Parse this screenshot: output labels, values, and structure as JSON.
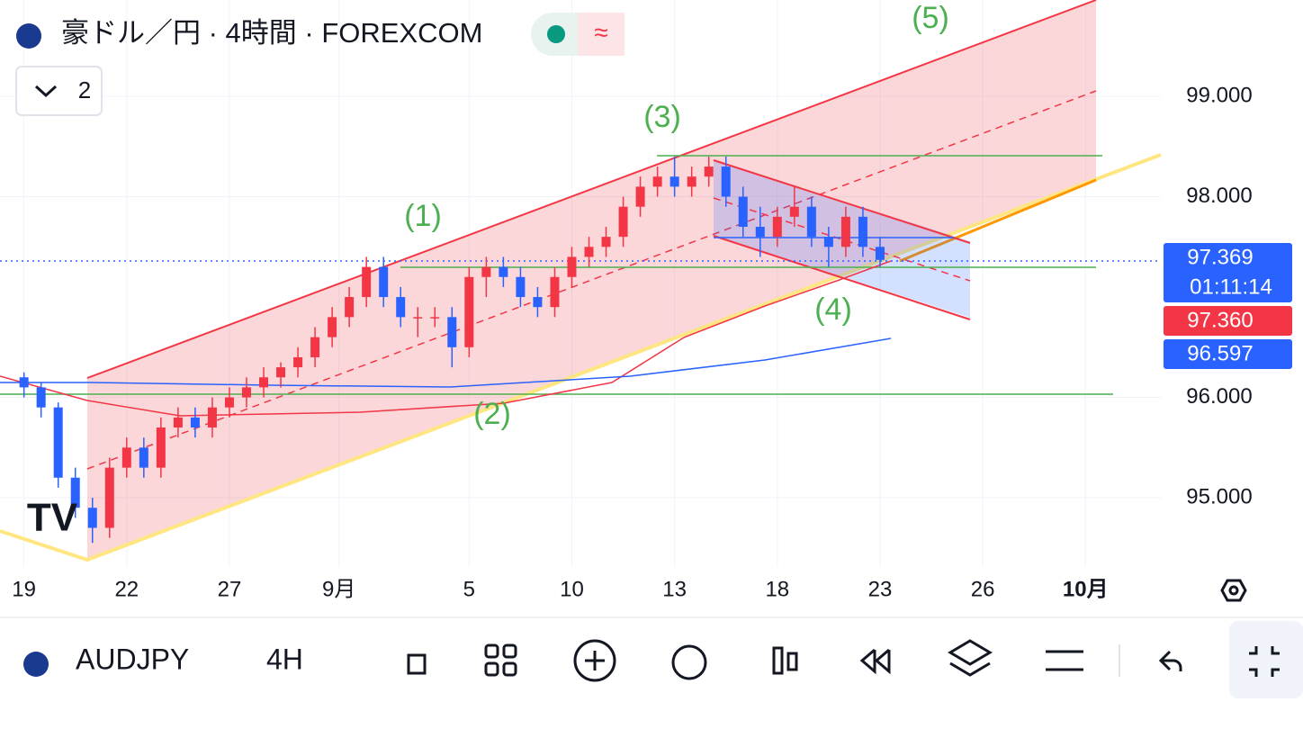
{
  "header": {
    "title": "豪ドル／円 · 4時間 · FOREXCOM",
    "indicator_count": 2
  },
  "chart_data": {
    "type": "candlestick",
    "xlim": [
      -0.7,
      33.2
    ],
    "xticks": [
      {
        "value": 0,
        "label": "19"
      },
      {
        "value": 3,
        "label": "22"
      },
      {
        "value": 6,
        "label": "27"
      },
      {
        "value": 9.2,
        "label": "9月"
      },
      {
        "value": 13,
        "label": "5"
      },
      {
        "value": 16,
        "label": "10"
      },
      {
        "value": 19,
        "label": "13"
      },
      {
        "value": 22,
        "label": "18"
      },
      {
        "value": 25,
        "label": "23"
      },
      {
        "value": 28,
        "label": "26"
      },
      {
        "value": 31,
        "label": "10月"
      }
    ],
    "ylim": [
      94.31,
      99.96
    ],
    "yticks": [
      {
        "value": 95,
        "label": "95.000"
      },
      {
        "value": 96,
        "label": "96.000"
      },
      {
        "value": 98,
        "label": "98.000"
      },
      {
        "value": 99,
        "label": "99.000"
      }
    ],
    "up_color": "#f23645",
    "down_color": "#2962ff",
    "x": [
      0,
      0.5,
      1,
      1.5,
      2,
      2.5,
      3,
      3.5,
      4,
      4.5,
      5,
      5.5,
      6,
      6.5,
      7,
      7.5,
      8,
      8.5,
      9,
      9.5,
      10,
      10.5,
      11,
      11.5,
      12,
      12.5,
      13,
      13.5,
      14,
      14.5,
      15,
      15.5,
      16,
      16.5,
      17,
      17.5,
      18,
      18.5,
      19,
      19.5,
      20,
      20.5,
      21,
      21.5,
      22,
      22.5,
      23,
      23.5,
      24,
      24.5,
      25
    ],
    "open": [
      96.2,
      96.1,
      95.9,
      95.2,
      94.9,
      94.7,
      95.3,
      95.5,
      95.3,
      95.7,
      95.8,
      95.7,
      95.9,
      96.0,
      96.1,
      96.2,
      96.3,
      96.4,
      96.6,
      96.8,
      97.0,
      97.3,
      97.0,
      96.8,
      96.8,
      96.8,
      96.5,
      97.2,
      97.3,
      97.2,
      97.0,
      96.9,
      97.2,
      97.4,
      97.5,
      97.6,
      97.9,
      98.1,
      98.2,
      98.1,
      98.2,
      98.3,
      98.0,
      97.7,
      97.6,
      97.8,
      97.9,
      97.6,
      97.5,
      97.8,
      97.5
    ],
    "high": [
      96.25,
      96.15,
      95.95,
      95.3,
      95.0,
      95.4,
      95.6,
      95.6,
      95.8,
      95.9,
      95.9,
      96.0,
      96.1,
      96.2,
      96.3,
      96.35,
      96.5,
      96.7,
      96.9,
      97.1,
      97.4,
      97.4,
      97.1,
      96.9,
      96.9,
      96.9,
      97.3,
      97.4,
      97.4,
      97.3,
      97.1,
      97.3,
      97.5,
      97.6,
      97.7,
      98.0,
      98.2,
      98.3,
      98.4,
      98.3,
      98.4,
      98.4,
      98.1,
      97.9,
      97.9,
      98.1,
      98.0,
      97.7,
      97.9,
      97.9,
      97.6
    ],
    "low": [
      96.0,
      95.8,
      95.1,
      94.8,
      94.55,
      94.6,
      95.2,
      95.2,
      95.2,
      95.6,
      95.6,
      95.6,
      95.8,
      95.9,
      96.0,
      96.1,
      96.2,
      96.3,
      96.5,
      96.7,
      96.9,
      96.9,
      96.7,
      96.6,
      96.7,
      96.3,
      96.4,
      97.0,
      97.1,
      96.9,
      96.8,
      96.8,
      97.1,
      97.3,
      97.4,
      97.5,
      97.8,
      98.0,
      98.0,
      98.0,
      98.1,
      97.9,
      97.6,
      97.4,
      97.5,
      97.7,
      97.5,
      97.3,
      97.4,
      97.4,
      97.3
    ],
    "close": [
      96.1,
      95.9,
      95.2,
      94.9,
      94.7,
      95.3,
      95.5,
      95.3,
      95.7,
      95.8,
      95.7,
      95.9,
      96.0,
      96.1,
      96.2,
      96.3,
      96.4,
      96.6,
      96.8,
      97.0,
      97.3,
      97.0,
      96.8,
      96.8,
      96.8,
      96.5,
      97.2,
      97.3,
      97.2,
      97.0,
      96.9,
      97.2,
      97.4,
      97.5,
      97.6,
      97.9,
      98.1,
      98.2,
      98.1,
      98.2,
      98.3,
      98.0,
      97.7,
      97.6,
      97.8,
      97.9,
      97.6,
      97.5,
      97.8,
      97.5,
      97.37
    ],
    "annotations": [
      "(1)",
      "(2)",
      "(3)",
      "(4)",
      "(5)"
    ],
    "price_labels": [
      {
        "value": 97.369,
        "label": "97.369",
        "color": "#2962ff"
      },
      {
        "value": 97.36,
        "label": "97.360",
        "color": "#f23645"
      },
      {
        "value": 96.597,
        "label": "96.597",
        "color": "#2962ff"
      }
    ],
    "countdown": "01:11:14"
  },
  "toolbar": {
    "symbol": "AUDJPY",
    "interval": "4H"
  }
}
